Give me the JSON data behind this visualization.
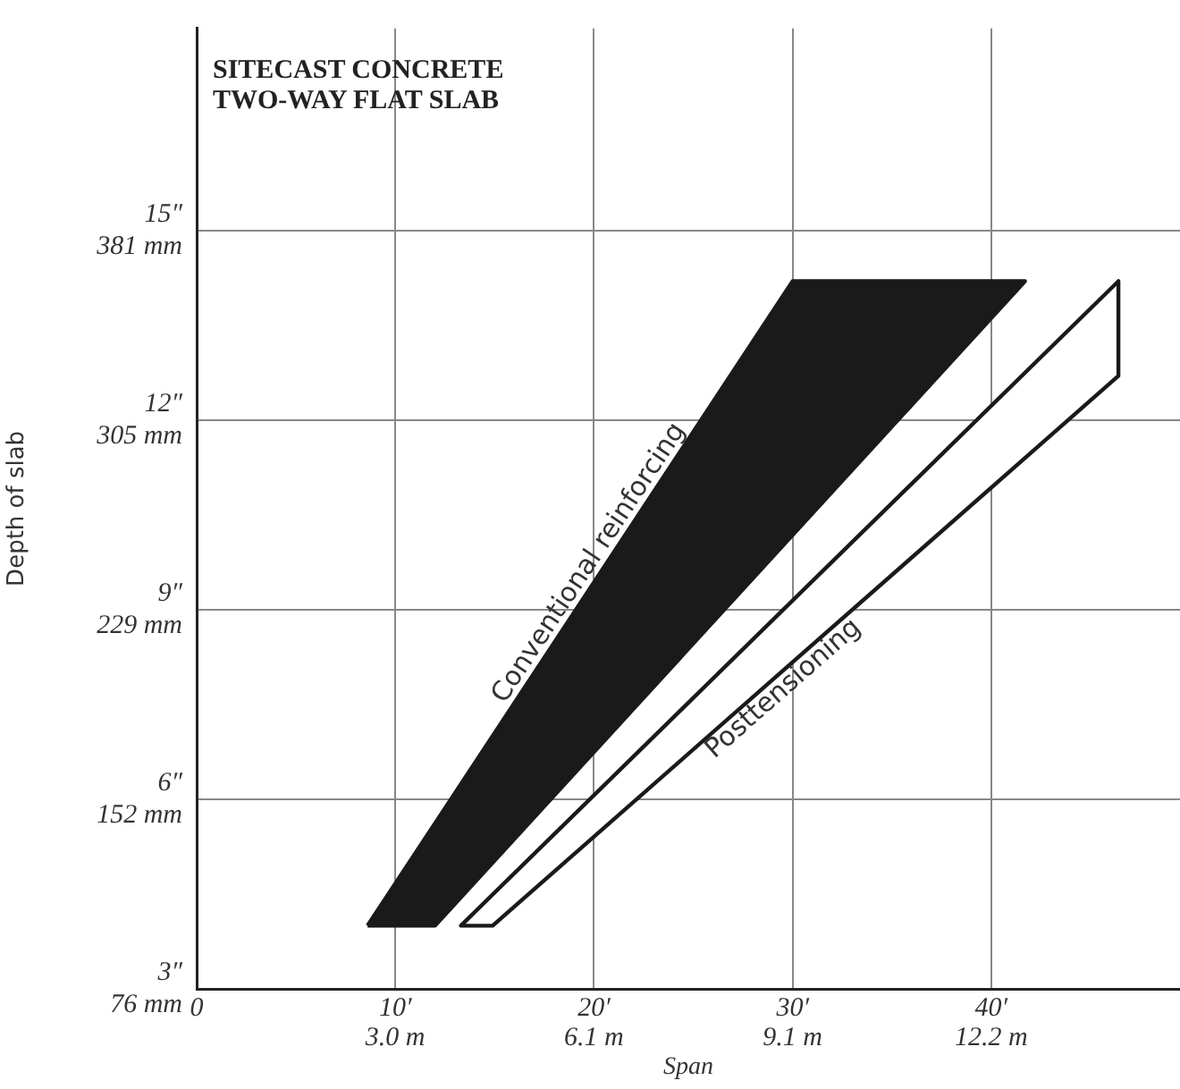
{
  "chart_data": {
    "type": "area",
    "title": "SITECAST CONCRETE\nTWO-WAY FLAT SLAB",
    "xlabel": "Span",
    "ylabel": "Depth of slab",
    "series": [
      {
        "name": "Conventional reinforcing",
        "type": "area",
        "axis": "y2",
        "color": "#1a1a1a",
        "x": [
          8.6,
          30,
          41.7,
          12,
          8.6
        ],
        "values": [
          4,
          14.2,
          14.2,
          4,
          4
        ]
      },
      {
        "name": "Posttensioning",
        "type": "area",
        "axis": "y2",
        "color": "#ffffff",
        "x": [
          46.4,
          14.9,
          13.3,
          46.4,
          46.4
        ],
        "values": [
          12.7,
          4,
          4,
          14.2,
          12.7
        ]
      }
    ],
    "xlim": [
      0,
      49.5
    ],
    "xticks": [
      0,
      {
        "value": 10,
        "label": "10′"
      },
      {
        "value": 20,
        "label": "20′"
      },
      {
        "value": 30,
        "label": "30′"
      },
      {
        "value": 40,
        "label": "40′"
      }
    ],
    "x2lim": [
      0,
      15.09
    ],
    "x2ticks": [
      {
        "value": 3.048,
        "label": "3.0 m"
      },
      {
        "value": 6.096,
        "label": "6.1 m"
      },
      {
        "value": 9.144,
        "label": "9.1 m"
      },
      {
        "value": 12.192,
        "label": "12.2 m"
      }
    ],
    "y2lim": [
      3,
      18.2
    ],
    "y2ticks": [
      {
        "value": 3,
        "label": "3″"
      },
      {
        "value": 6,
        "label": "6″"
      },
      {
        "value": 9,
        "label": "9″"
      },
      {
        "value": 12,
        "label": "12″"
      },
      {
        "value": 15,
        "label": "15″"
      }
    ],
    "ylim": [
      76.2,
      462.28
    ],
    "yticks": [
      {
        "value": 76.2,
        "label": "76 mm"
      },
      {
        "value": 152.4,
        "label": "152 mm"
      },
      {
        "value": 228.6,
        "label": "229 mm"
      },
      {
        "value": 304.8,
        "label": "305 mm"
      },
      {
        "value": 381,
        "label": "381 mm"
      }
    ],
    "grid": true,
    "legend": false
  }
}
